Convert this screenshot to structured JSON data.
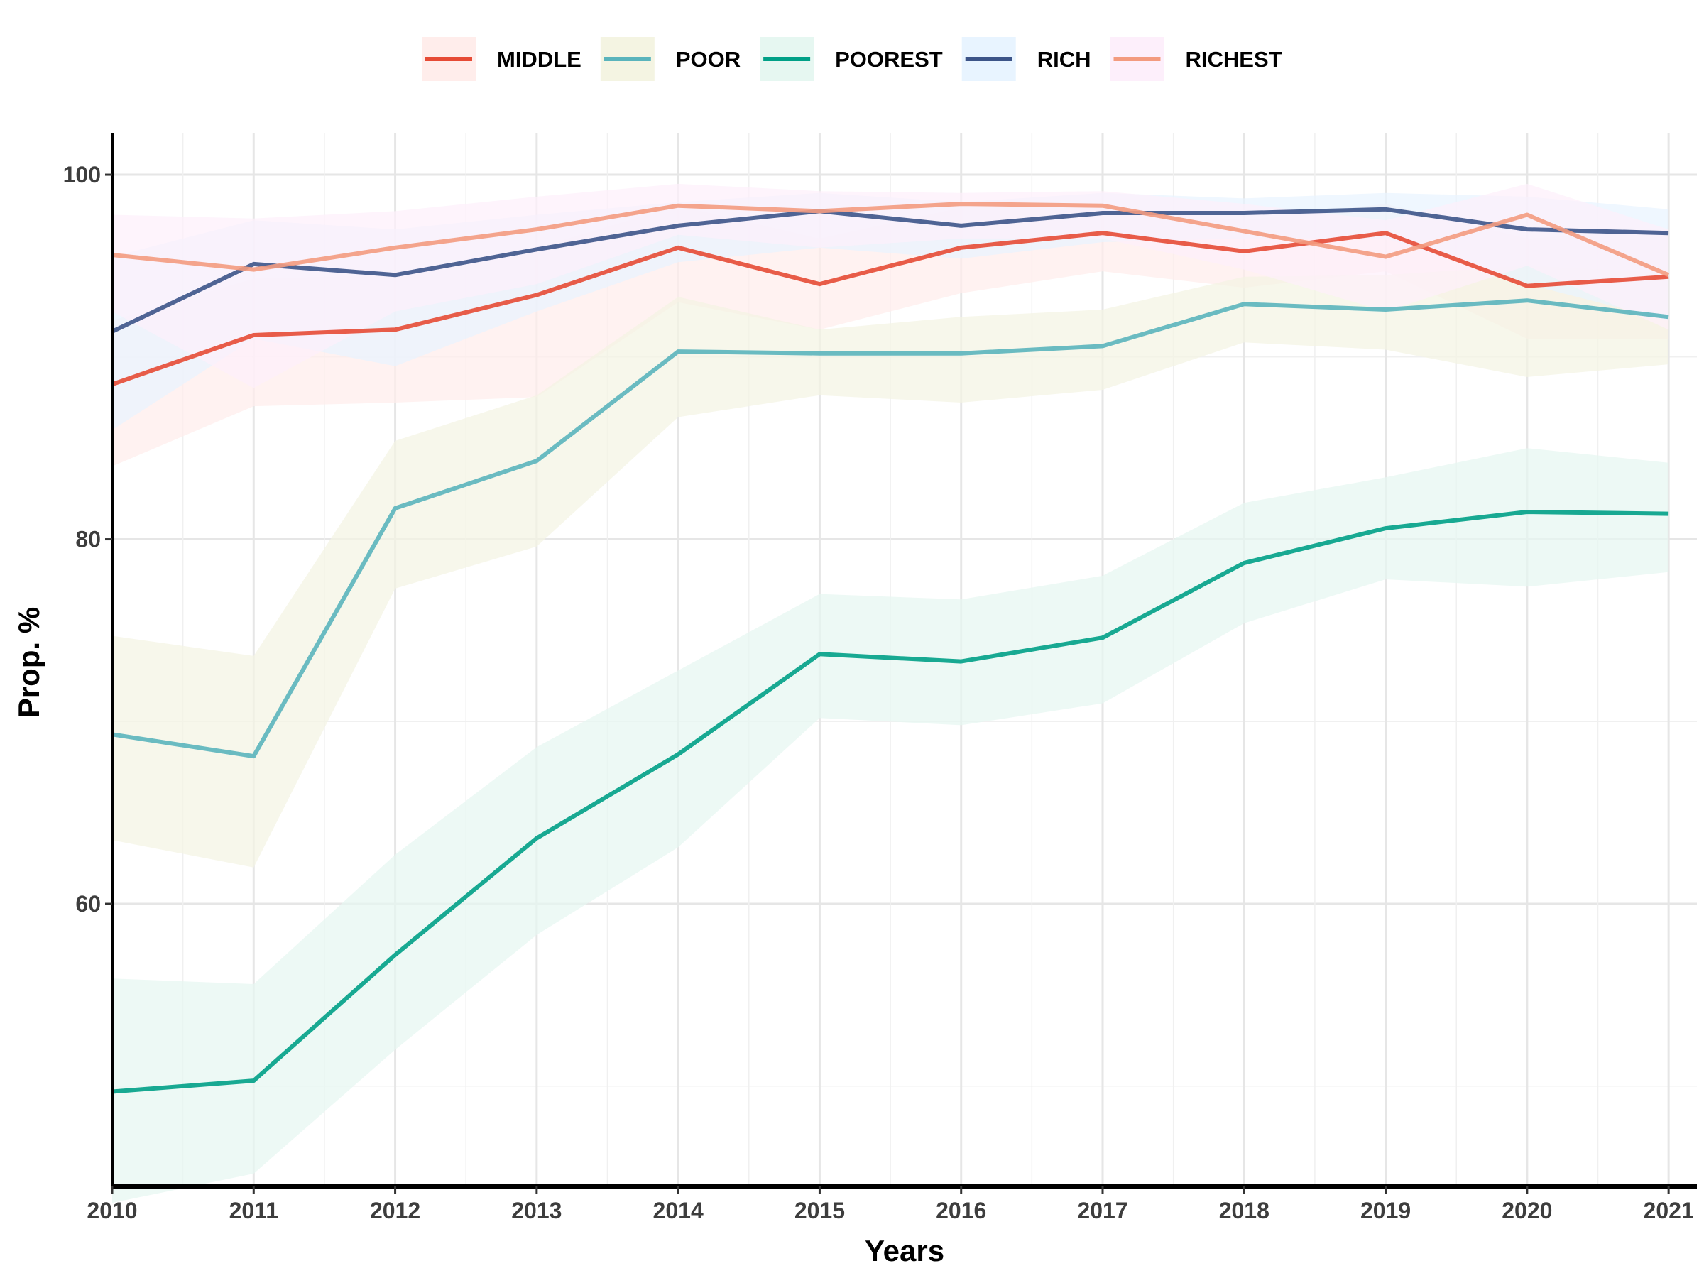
{
  "chart_data": {
    "type": "line",
    "xlabel": "Years",
    "ylabel": "Prop. %",
    "x": [
      2010,
      2011,
      2012,
      2013,
      2014,
      2015,
      2016,
      2017,
      2018,
      2019,
      2020,
      2021
    ],
    "xlim": [
      2010,
      2021.2
    ],
    "ylim": [
      44.5,
      102.3
    ],
    "y_ticks": [
      60,
      80,
      100
    ],
    "grid": true,
    "legend_position": "top",
    "series": [
      {
        "name": "MIDDLE",
        "color": "#E64B35",
        "band_color": "#FFEDEB",
        "values": [
          88.5,
          91.2,
          91.5,
          93.4,
          96.0,
          94.0,
          96.0,
          96.8,
          95.8,
          96.8,
          93.9,
          94.4
        ],
        "lower": [
          84.0,
          87.3,
          87.5,
          87.8,
          93.0,
          91.5,
          93.5,
          94.7,
          93.8,
          94.7,
          91.0,
          91.0
        ],
        "upper": [
          92.0,
          94.3,
          94.5,
          96.0,
          98.3,
          96.5,
          98.2,
          98.3,
          97.5,
          98.4,
          96.5,
          97.0
        ]
      },
      {
        "name": "POOR",
        "color": "#5AB4BC",
        "band_color": "#F4F4E2",
        "values": [
          69.3,
          68.1,
          81.7,
          84.3,
          90.3,
          90.2,
          90.2,
          90.6,
          92.9,
          92.6,
          93.1,
          92.2
        ],
        "lower": [
          63.5,
          62.0,
          77.3,
          79.6,
          86.7,
          87.9,
          87.5,
          88.2,
          90.8,
          90.4,
          88.9,
          89.6
        ],
        "upper": [
          74.7,
          73.6,
          85.4,
          87.9,
          93.3,
          91.5,
          92.2,
          92.6,
          94.4,
          94.5,
          95.0,
          94.6
        ]
      },
      {
        "name": "POOREST",
        "color": "#00A087",
        "band_color": "#E6F7F1",
        "values": [
          49.7,
          50.3,
          57.2,
          63.6,
          68.2,
          73.7,
          73.3,
          74.6,
          78.7,
          80.6,
          81.5,
          81.4
        ],
        "lower": [
          43.6,
          45.2,
          52.0,
          58.3,
          63.1,
          70.2,
          69.8,
          71.0,
          75.4,
          77.8,
          77.4,
          78.2
        ],
        "upper": [
          55.9,
          55.6,
          62.7,
          68.6,
          72.8,
          77.0,
          76.7,
          78.0,
          82.0,
          83.4,
          85.0,
          84.2
        ]
      },
      {
        "name": "RICH",
        "color": "#3C5488",
        "band_color": "#E8F4FF",
        "values": [
          91.4,
          95.1,
          94.5,
          95.9,
          97.2,
          98.0,
          97.2,
          97.9,
          97.9,
          98.1,
          97.0,
          96.8
        ],
        "lower": [
          86.0,
          91.0,
          89.5,
          92.5,
          95.2,
          96.0,
          95.4,
          96.3,
          96.5,
          96.5,
          94.0,
          92.0
        ],
        "upper": [
          95.5,
          97.5,
          97.0,
          97.8,
          98.5,
          99.0,
          98.5,
          99.0,
          98.7,
          99.0,
          98.8,
          98.1
        ]
      },
      {
        "name": "RICHEST",
        "color": "#F39B7F",
        "band_color": "#FDEFFB",
        "values": [
          95.6,
          94.8,
          96.0,
          97.0,
          98.3,
          98.0,
          98.4,
          98.3,
          96.9,
          95.5,
          97.8,
          94.5
        ],
        "lower": [
          92.5,
          88.3,
          92.5,
          94.0,
          96.7,
          96.0,
          96.5,
          96.5,
          94.8,
          92.5,
          95.0,
          91.5
        ],
        "upper": [
          97.8,
          97.6,
          98.0,
          98.8,
          99.5,
          99.1,
          99.0,
          99.1,
          98.4,
          97.5,
          99.5,
          97.0
        ]
      }
    ]
  }
}
